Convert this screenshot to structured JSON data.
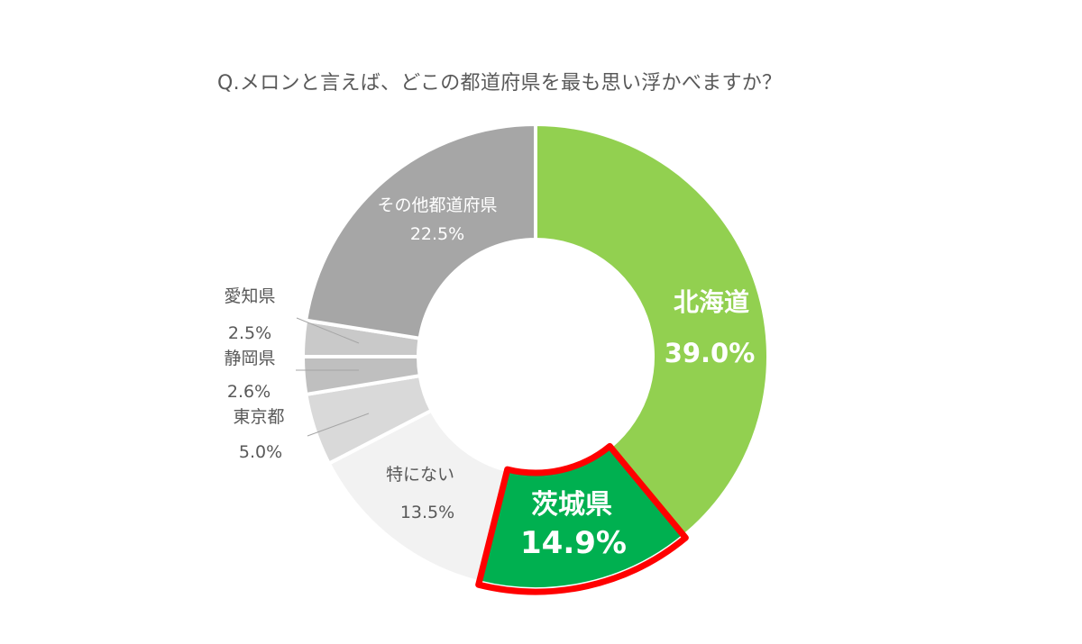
{
  "title": "Q.メロンと言えば、どこの都道府県を最も思い浮かべますか？",
  "chart_data": {
    "type": "pie",
    "variant": "donut",
    "title": "Q.メロンと言えば、どこの都道府県を最も思い浮かべますか？",
    "slices": [
      {
        "label": "北海道",
        "value": 39.0,
        "value_label": "39.0%",
        "color": "#92d050"
      },
      {
        "label": "茨城県",
        "value": 14.9,
        "value_label": "14.9%",
        "color": "#00b050",
        "highlight_border": "#ff0000"
      },
      {
        "label": "特にない",
        "value": 13.5,
        "value_label": "13.5%",
        "color": "#f2f2f2"
      },
      {
        "label": "東京都",
        "value": 5.0,
        "value_label": "5.0%",
        "color": "#d9d9d9"
      },
      {
        "label": "静岡県",
        "value": 2.6,
        "value_label": "2.6%",
        "color": "#bfbfbf"
      },
      {
        "label": "愛知県",
        "value": 2.5,
        "value_label": "2.5%",
        "color": "#c9c9c9"
      },
      {
        "label": "その他都道府県",
        "value": 22.5,
        "value_label": "22.5%",
        "color": "#a6a6a6"
      }
    ],
    "start_angle": "12 o'clock",
    "direction": "clockwise",
    "legend": "none"
  }
}
